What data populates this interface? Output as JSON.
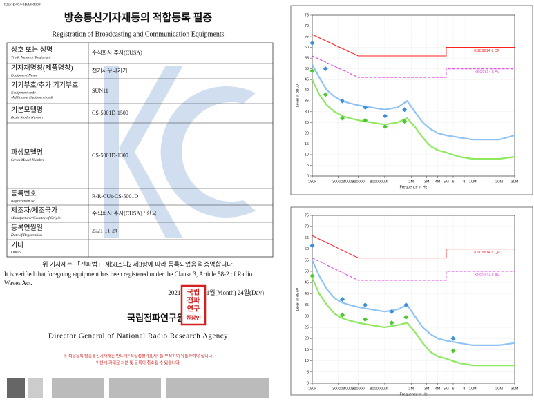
{
  "document": {
    "doc_number": "8317-B487-8BA4-8669",
    "title": "방송통신기자재등의 적합등록 필증",
    "subtitle": "Registration of Broadcasting and Communication Equipments",
    "rows": [
      {
        "label": "상호 또는 성명",
        "label_en": "Trade Name or Registrant",
        "value": "주식회사 추사(CUSA)"
      },
      {
        "label": "기자재명칭(제품명칭)",
        "label_en": "Equipment Name",
        "value": "전기사우나기기"
      },
      {
        "label": "기기부호/추가 기기부호",
        "label_en": "Equipment code",
        "label_en2": "/Additional Equipment code",
        "value": "SUN11"
      },
      {
        "label": "기본모델명",
        "label_en": "Basic Model Number",
        "value": "CS-5001D-1500"
      },
      {
        "label": "파생모델명",
        "label_en": "Series Model Number",
        "value": "CS-5001D-1300"
      },
      {
        "label": "등록번호",
        "label_en": "Registration No.",
        "value": "R-R-CUs-CS-5001D"
      },
      {
        "label": "제조자/제조국가",
        "label_en": "Manufacturer/Country of Origin",
        "value": "주식회사 추사(CUSA) / 한국"
      },
      {
        "label": "등록연월일",
        "label_en": "Date of Registration",
        "value": "2021-11-24"
      },
      {
        "label": "기타",
        "label_en": "Others"
      }
    ],
    "statement_ko": "위 기자재는 「전파법」 제58조의2 제3항에 따라 등록되었음을 증명합니다.",
    "statement_en": [
      "It is verified that foregoing equipment has been registered under the Clause 3, Article 58-2 of Radio",
      "Waves Act."
    ],
    "date": "2021년(Year)  11월(Month)  24일(Day)",
    "issuer": "국립전파연구원장",
    "seal": [
      "국립",
      "전파",
      "연구",
      "원장인"
    ],
    "issuer_en": "Director General of National Radio Research Agency",
    "notice": [
      "※ 적합등록 방송통신기자재는 반드시 \"적합성평가표시\" 를 부착하여 유통하여야 합니다.",
      "위반시 과태료 처분 및 등록이 취소될 수 있습니다."
    ]
  },
  "chart_data": [
    {
      "type": "line",
      "xlabel": "Frequency in Hz",
      "ylabel": "Level in dBuV",
      "xscale": "log",
      "xlim": [
        150000,
        30000000
      ],
      "ylim": [
        0,
        75
      ],
      "yticks": [
        0,
        5,
        10,
        15,
        20,
        25,
        30,
        35,
        40,
        45,
        50,
        55,
        60,
        65,
        70,
        75
      ],
      "xticks": [
        {
          "value": 150000,
          "label": "150k"
        },
        300000,
        400000,
        500000,
        800000,
        {
          "value": 1000000,
          "label": "1M"
        },
        {
          "value": 2000000,
          "label": "2M"
        },
        {
          "value": 3000000,
          "label": "3M"
        },
        {
          "value": 4000000,
          "label": "4M"
        },
        {
          "value": 5000000,
          "label": "5M"
        },
        {
          "value": 6000000,
          "label": "6"
        },
        {
          "value": 8000000,
          "label": "8"
        },
        {
          "value": 10000000,
          "label": "10M"
        },
        {
          "value": 20000000,
          "label": "20M"
        },
        {
          "value": 30000000,
          "label": "30M"
        }
      ],
      "grid": true,
      "series": [
        {
          "name": "KSC9814 L QP",
          "color": "#ff2020",
          "style": "solid",
          "x": [
            150000,
            500000,
            5000000,
            5000000,
            30000000
          ],
          "values": [
            66,
            56,
            56,
            60,
            60
          ]
        },
        {
          "name": "KSC9814 L AV",
          "color": "#e040e0",
          "style": "dashed",
          "x": [
            150000,
            500000,
            5000000,
            5000000,
            30000000
          ],
          "values": [
            56,
            46,
            46,
            50,
            50
          ]
        },
        {
          "color": "#8fc3f5",
          "style": "trace",
          "x": [
            150000,
            180000,
            220000,
            270000,
            330000,
            400000,
            500000,
            700000,
            1000000,
            1400000,
            1800000,
            2200000,
            2700000,
            3300000,
            4000000,
            5000000,
            7000000,
            10000000,
            15000000,
            20000000,
            30000000
          ],
          "values": [
            52,
            46,
            40,
            37,
            35,
            34,
            33,
            32,
            31,
            32,
            35,
            30,
            25,
            22,
            20,
            19,
            18,
            17,
            17,
            17,
            19
          ]
        },
        {
          "color": "#8ee860",
          "style": "trace",
          "x": [
            150000,
            180000,
            220000,
            270000,
            330000,
            400000,
            500000,
            700000,
            1000000,
            1400000,
            1800000,
            2200000,
            2700000,
            3300000,
            4000000,
            5000000,
            7000000,
            10000000,
            15000000,
            20000000,
            30000000
          ],
          "values": [
            45,
            38,
            33,
            30,
            28,
            27,
            26,
            25,
            24,
            25,
            27,
            23,
            18,
            14,
            12,
            11,
            9,
            8,
            8,
            8,
            9
          ]
        },
        {
          "color": "#3a8fd8",
          "style": "marker",
          "x": [
            150000,
            212000,
            330000,
            600000,
            1010000,
            1680000
          ],
          "values": [
            62,
            50,
            35,
            32,
            28,
            31
          ]
        },
        {
          "color": "#4cc830",
          "style": "marker",
          "x": [
            150000,
            212000,
            330000,
            600000,
            1010000,
            1680000
          ],
          "values": [
            49,
            38,
            27,
            26,
            23,
            25.5
          ]
        }
      ]
    },
    {
      "type": "line",
      "xlabel": "Frequency in Hz",
      "ylabel": "Level in dBuV",
      "xscale": "log",
      "xlim": [
        150000,
        30000000
      ],
      "ylim": [
        0,
        75
      ],
      "yticks": [
        0,
        5,
        10,
        15,
        20,
        25,
        30,
        35,
        40,
        45,
        50,
        55,
        60,
        65,
        70,
        75
      ],
      "xticks": [
        {
          "value": 150000,
          "label": "150k"
        },
        300000,
        400000,
        500000,
        800000,
        {
          "value": 1000000,
          "label": "1M"
        },
        {
          "value": 2000000,
          "label": "2M"
        },
        {
          "value": 3000000,
          "label": "3M"
        },
        {
          "value": 4000000,
          "label": "4M"
        },
        {
          "value": 5000000,
          "label": "5M"
        },
        {
          "value": 6000000,
          "label": "6"
        },
        {
          "value": 8000000,
          "label": "8"
        },
        {
          "value": 10000000,
          "label": "10M"
        },
        {
          "value": 20000000,
          "label": "20M"
        },
        {
          "value": 30000000,
          "label": "30M"
        }
      ],
      "grid": true,
      "series": [
        {
          "name": "KSC9814 L QP",
          "color": "#ff2020",
          "style": "solid",
          "x": [
            150000,
            500000,
            5000000,
            5000000,
            30000000
          ],
          "values": [
            66,
            56,
            56,
            60,
            60
          ]
        },
        {
          "name": "KSC9814 L AV",
          "color": "#e040e0",
          "style": "dashed",
          "x": [
            150000,
            500000,
            5000000,
            5000000,
            30000000
          ],
          "values": [
            56,
            46,
            46,
            50,
            50
          ]
        },
        {
          "color": "#8fc3f5",
          "style": "trace",
          "x": [
            150000,
            180000,
            220000,
            270000,
            330000,
            400000,
            500000,
            700000,
            1000000,
            1400000,
            1800000,
            2200000,
            2700000,
            3300000,
            4000000,
            5000000,
            7000000,
            10000000,
            15000000,
            20000000,
            30000000
          ],
          "values": [
            55,
            48,
            42,
            38,
            36,
            35,
            34,
            33,
            32,
            33,
            35,
            30,
            25,
            22,
            20,
            19,
            18,
            17,
            17,
            17,
            18
          ]
        },
        {
          "color": "#8ee860",
          "style": "trace",
          "x": [
            150000,
            180000,
            220000,
            270000,
            330000,
            400000,
            500000,
            700000,
            1000000,
            1400000,
            1800000,
            2200000,
            2700000,
            3300000,
            4000000,
            5000000,
            7000000,
            10000000,
            15000000,
            20000000,
            30000000
          ],
          "values": [
            47,
            40,
            35,
            31,
            29,
            28,
            27,
            26,
            25,
            26,
            27,
            23,
            18,
            14,
            12,
            11,
            9,
            8,
            8,
            8,
            8
          ]
        },
        {
          "color": "#3a8fd8",
          "style": "marker",
          "x": [
            150000,
            330000,
            600000,
            1200000,
            1750000,
            6000000
          ],
          "values": [
            61.5,
            37.5,
            35,
            32,
            35,
            20
          ]
        },
        {
          "color": "#4cc830",
          "style": "marker",
          "x": [
            150000,
            330000,
            600000,
            1200000,
            1750000,
            6000000
          ],
          "values": [
            48,
            30.5,
            28.5,
            27,
            29.5,
            14.5
          ]
        }
      ]
    }
  ]
}
